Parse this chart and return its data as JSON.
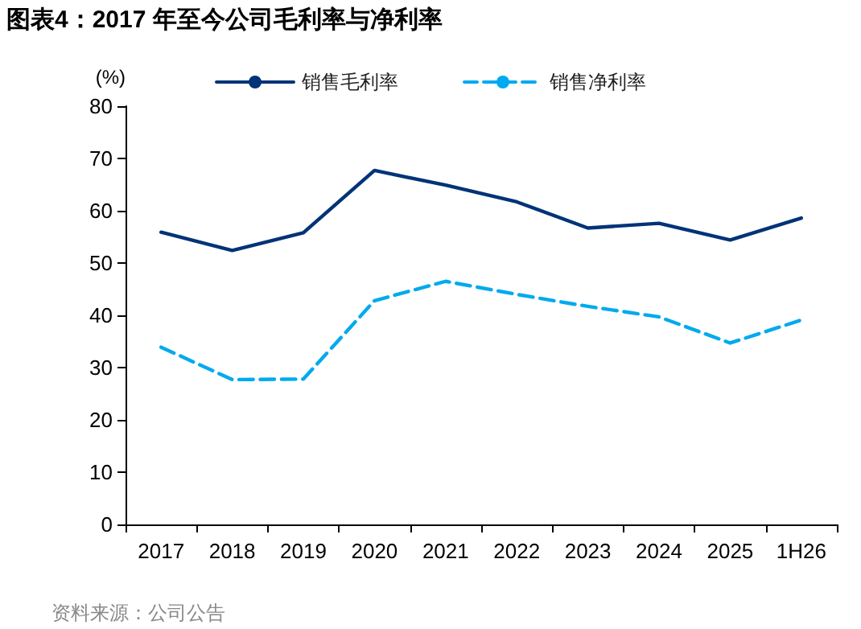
{
  "chart_data": {
    "type": "line",
    "title": "图表4：2017 年至今公司毛利率与净利率",
    "ylabel": "(%)",
    "annotations": [
      "资料来源：公司公告"
    ],
    "categories": [
      "2017",
      "2018",
      "2019",
      "2020",
      "2021",
      "2022",
      "2023",
      "2024",
      "2025",
      "1H26"
    ],
    "series": [
      {
        "name": "销售毛利率",
        "color": "#003377",
        "line_style": "solid",
        "values": [
          55.9,
          52.4,
          55.8,
          67.7,
          64.9,
          61.7,
          56.7,
          57.6,
          54.4,
          58.6
        ]
      },
      {
        "name": "销售净利率",
        "color": "#00aaee",
        "line_style": "dashed",
        "values": [
          33.9,
          27.7,
          27.8,
          42.8,
          46.5,
          44.0,
          41.7,
          39.7,
          34.7,
          39.1
        ]
      }
    ],
    "ylim": [
      0,
      80
    ],
    "yticks": [
      0,
      10,
      20,
      30,
      40,
      50,
      60,
      70,
      80
    ],
    "grid": false,
    "legend": "top",
    "marker": "none"
  }
}
